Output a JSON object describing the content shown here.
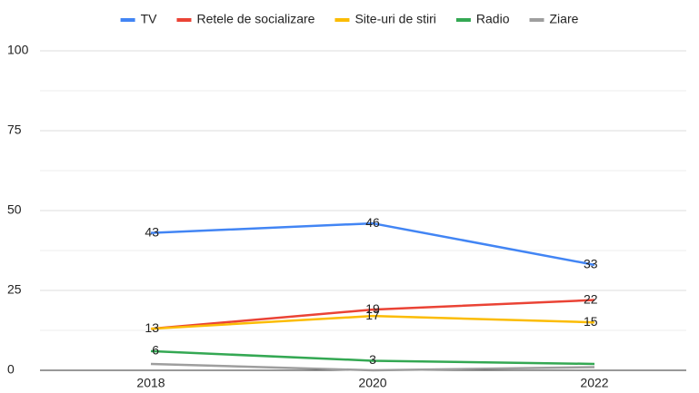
{
  "chart_data": {
    "type": "line",
    "categories": [
      "2018",
      "2020",
      "2022"
    ],
    "series": [
      {
        "name": "TV",
        "color": "#4285f4",
        "values": [
          43,
          46,
          33
        ],
        "value_labels": [
          "43",
          "46",
          "33"
        ]
      },
      {
        "name": "Retele de socializare",
        "color": "#ea4335",
        "values": [
          13,
          19,
          22
        ],
        "value_labels": [
          "13",
          "19",
          "22"
        ]
      },
      {
        "name": "Site-uri de stiri",
        "color": "#fbbc04",
        "values": [
          13,
          17,
          15
        ],
        "value_labels": [
          null,
          "17",
          "15"
        ]
      },
      {
        "name": "Radio",
        "color": "#34a853",
        "values": [
          6,
          3,
          2
        ],
        "value_labels": [
          "6",
          "3",
          null
        ]
      },
      {
        "name": "Ziare",
        "color": "#9e9e9e",
        "values": [
          2,
          0,
          1
        ],
        "value_labels": [
          null,
          null,
          null
        ]
      }
    ],
    "ylim": [
      0,
      100
    ],
    "yticks": [
      0,
      25,
      50,
      75,
      100
    ],
    "grid": true,
    "legend": "top"
  }
}
